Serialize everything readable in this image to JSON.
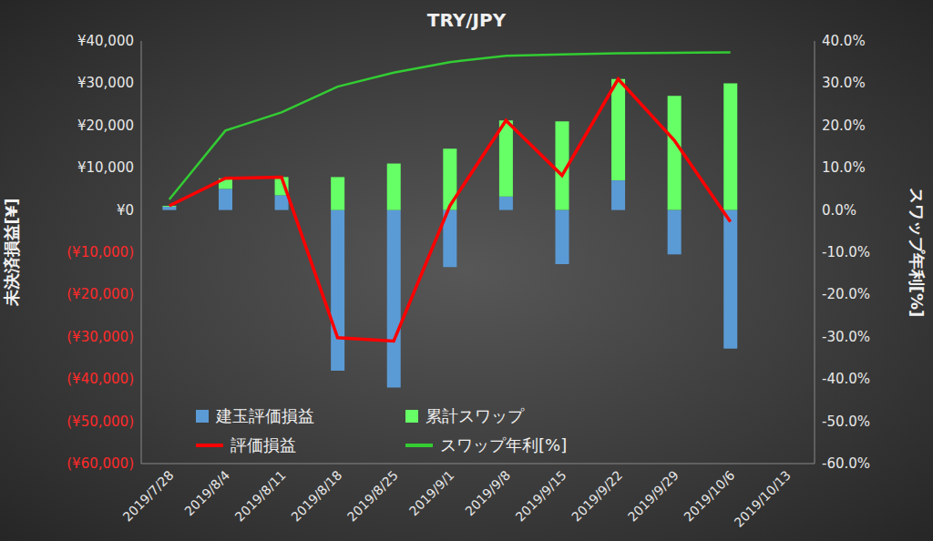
{
  "chart_data": {
    "type": "bar",
    "title": "TRY/JPY",
    "y_label": "未決済損益[¥]",
    "y2_label": "スワップ年利[%]",
    "categories": [
      "2019/7/28",
      "2019/8/4",
      "2019/8/11",
      "2019/8/18",
      "2019/8/25",
      "2019/9/1",
      "2019/9/8",
      "2019/9/15",
      "2019/9/22",
      "2019/9/29",
      "2019/10/6",
      "2019/10/13"
    ],
    "stacked": true,
    "legend": "lower left",
    "grid": false,
    "ylim": [
      -60000,
      40000
    ],
    "yticks": [
      {
        "value": -60000,
        "label": "(¥60,000)"
      },
      {
        "value": -50000,
        "label": "(¥50,000)"
      },
      {
        "value": -40000,
        "label": "(¥40,000)"
      },
      {
        "value": -30000,
        "label": "(¥30,000)"
      },
      {
        "value": -20000,
        "label": "(¥20,000)"
      },
      {
        "value": -10000,
        "label": "(¥10,000)"
      },
      {
        "value": 0,
        "label": "¥0"
      },
      {
        "value": 10000,
        "label": "¥10,000"
      },
      {
        "value": 20000,
        "label": "¥20,000"
      },
      {
        "value": 30000,
        "label": "¥30,000"
      },
      {
        "value": 40000,
        "label": "¥40,000"
      }
    ],
    "y2lim": [
      -60,
      40
    ],
    "y2ticks": [
      {
        "value": -60,
        "label": "-60.0%"
      },
      {
        "value": -50,
        "label": "-50.0%"
      },
      {
        "value": -40,
        "label": "-40.0%"
      },
      {
        "value": -30,
        "label": "-30.0%"
      },
      {
        "value": -20,
        "label": "-20.0%"
      },
      {
        "value": -10,
        "label": "-10.0%"
      },
      {
        "value": 0,
        "label": "0.0%"
      },
      {
        "value": 10,
        "label": "10.0%"
      },
      {
        "value": 20,
        "label": "20.0%"
      },
      {
        "value": 30,
        "label": "30.0%"
      },
      {
        "value": 40,
        "label": "40.0%"
      }
    ],
    "series": [
      {
        "name": "建玉評価損益",
        "type": "bar",
        "color": "#5b9bd5",
        "values": [
          800,
          5000,
          3500,
          -38000,
          -42000,
          -13500,
          3200,
          -12800,
          7000,
          -10500,
          -32800,
          null
        ]
      },
      {
        "name": "累計スワップ",
        "type": "bar",
        "color": "#66ff66",
        "values": [
          200,
          2500,
          4300,
          7800,
          11000,
          14500,
          18000,
          21000,
          24000,
          27000,
          30000,
          null
        ]
      },
      {
        "name": "評価損益",
        "type": "line",
        "color": "#ff0000",
        "values": [
          1000,
          7500,
          7800,
          -30200,
          -31000,
          1000,
          21200,
          8200,
          31000,
          16500,
          -2800,
          null
        ]
      },
      {
        "name": "スワップ年利[%]",
        "type": "line",
        "color": "#33cc33",
        "axis": "y2",
        "values": [
          2.5,
          18.8,
          23.1,
          29.2,
          32.5,
          35.0,
          36.5,
          36.8,
          37.1,
          37.2,
          37.3,
          null
        ]
      }
    ]
  }
}
